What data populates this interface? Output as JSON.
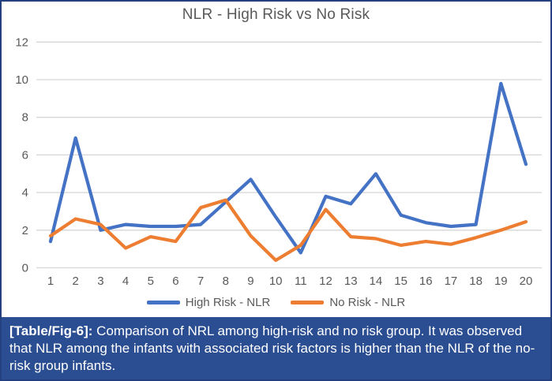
{
  "figure": {
    "caption_label": "[Table/Fig-6]:",
    "caption_text": " Comparison of NRL among high-risk and no risk group. It was observed that NLR among the infants with associated risk factors is higher than the NLR of the no-risk group infants."
  },
  "colors": {
    "high_risk_line": "#4472C4",
    "no_risk_line": "#ED7D31",
    "gridline": "#D6D6D6",
    "axis_text": "#595959",
    "title_text": "#595959",
    "caption_bg": "#2B4D92",
    "frame_border": "#24407E"
  },
  "chart_data": {
    "type": "line",
    "title": "NLR - High Risk vs No Risk",
    "x": [
      "1",
      "2",
      "3",
      "4",
      "5",
      "6",
      "7",
      "8",
      "9",
      "10",
      "11",
      "12",
      "13",
      "14",
      "15",
      "16",
      "17",
      "18",
      "19",
      "20"
    ],
    "series": [
      {
        "name": "High Risk - NLR",
        "color": "#4472C4",
        "values": [
          1.4,
          6.9,
          2.0,
          2.3,
          2.2,
          2.2,
          2.3,
          3.5,
          4.7,
          2.7,
          0.8,
          3.8,
          3.4,
          5.0,
          2.8,
          2.4,
          2.2,
          2.3,
          9.8,
          5.5
        ]
      },
      {
        "name": "No Risk - NLR",
        "color": "#ED7D31",
        "values": [
          1.7,
          2.6,
          2.3,
          1.05,
          1.65,
          1.4,
          3.2,
          3.6,
          1.7,
          0.4,
          1.2,
          3.1,
          1.65,
          1.55,
          1.2,
          1.4,
          1.25,
          1.6,
          2.0,
          2.45
        ]
      }
    ],
    "xlabel": "",
    "ylabel": "",
    "ylim": [
      0,
      12
    ],
    "yticks": [
      0,
      2,
      4,
      6,
      8,
      10,
      12
    ],
    "grid": true,
    "legend_position": "bottom"
  }
}
